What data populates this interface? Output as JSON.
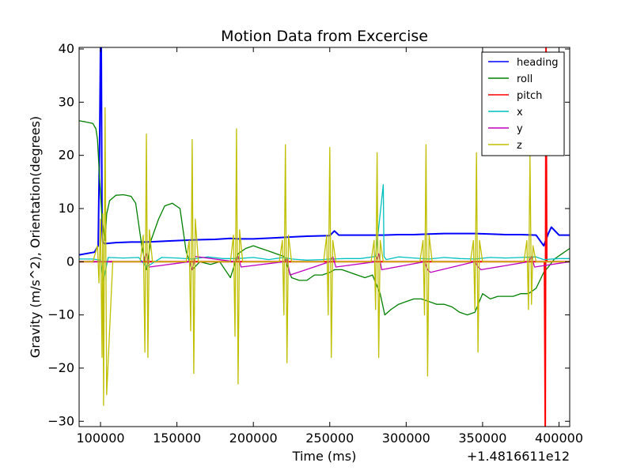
{
  "chart_data": {
    "type": "line",
    "title": "Motion Data from Excercise",
    "xlabel": "Time (ms)",
    "ylabel": "Gravity (m/s^2), Orientation(degrees)",
    "x_offset_label": "+1.4816611e12",
    "xlim": [
      86000,
      407000
    ],
    "ylim": [
      -31,
      40.3
    ],
    "xticks": [
      100000,
      150000,
      200000,
      250000,
      300000,
      350000,
      400000
    ],
    "yticks": [
      -30,
      -20,
      -10,
      0,
      10,
      20,
      30,
      40
    ],
    "grid": false,
    "legend_position": "top-right",
    "series": [
      {
        "name": "heading",
        "color": "#0000ff",
        "x": [
          86000,
          96000,
          98500,
          99500,
          100000,
          100500,
          101000,
          101500,
          103000,
          110000,
          120000,
          130000,
          145000,
          160000,
          175000,
          185000,
          190000,
          200000,
          215000,
          222000,
          235000,
          250000,
          253000,
          256000,
          270000,
          285000,
          295000,
          305000,
          315000,
          325000,
          335000,
          345000,
          355000,
          365000,
          375000,
          385000,
          390000,
          393000,
          395000,
          400000,
          407000
        ],
        "y": [
          1.3,
          1.8,
          3.0,
          25.0,
          40.3,
          40.3,
          6.0,
          3.6,
          3.4,
          3.6,
          3.7,
          3.7,
          3.9,
          4.1,
          4.2,
          4.4,
          4.3,
          4.3,
          4.5,
          4.6,
          4.8,
          4.9,
          5.8,
          5.0,
          5.0,
          5.0,
          5.1,
          5.1,
          5.2,
          5.3,
          5.3,
          5.3,
          5.2,
          5.1,
          5.1,
          5.0,
          3.0,
          5.3,
          6.5,
          5.0,
          5.0
        ]
      },
      {
        "name": "roll",
        "color": "#008000",
        "x": [
          86000,
          90000,
          95000,
          97000,
          98000,
          99500,
          101000,
          103000,
          104000,
          106000,
          110000,
          115000,
          120000,
          123000,
          127000,
          130000,
          133000,
          138000,
          142000,
          147000,
          152000,
          156000,
          160000,
          165000,
          172000,
          178000,
          185000,
          190000,
          195000,
          200000,
          205000,
          210000,
          215000,
          220000,
          225000,
          230000,
          235000,
          240000,
          245000,
          250000,
          253000,
          258000,
          263000,
          268000,
          273000,
          278000,
          283000,
          286000,
          290000,
          295000,
          300000,
          305000,
          310000,
          315000,
          320000,
          325000,
          330000,
          335000,
          340000,
          345000,
          350000,
          355000,
          360000,
          365000,
          370000,
          375000,
          380000,
          385000,
          390000,
          393000,
          397000,
          402000,
          407000
        ],
        "y": [
          26.5,
          26.3,
          26.0,
          25.0,
          23.0,
          15.0,
          8.0,
          4.0,
          9.0,
          11.5,
          12.5,
          12.6,
          12.3,
          11.0,
          3.0,
          -1.5,
          4.0,
          8.0,
          10.5,
          11.0,
          10.0,
          2.0,
          -1.5,
          0.0,
          -0.5,
          0.0,
          -3.0,
          1.5,
          2.5,
          3.0,
          2.5,
          2.0,
          1.5,
          1.0,
          -3.0,
          -3.5,
          -3.5,
          -2.5,
          -2.5,
          -2.0,
          -1.5,
          -1.5,
          -2.0,
          -2.5,
          -3.0,
          -2.5,
          -6.0,
          -10.0,
          -9.0,
          -8.0,
          -7.5,
          -7.0,
          -7.0,
          -7.5,
          -8.0,
          -8.0,
          -8.5,
          -9.5,
          -10.0,
          -9.5,
          -6.0,
          -7.0,
          -6.5,
          -6.5,
          -6.5,
          -6.0,
          -6.0,
          -5.0,
          -2.0,
          -1.0,
          0.5,
          1.5,
          2.5
        ]
      },
      {
        "name": "pitch",
        "color": "#ff0000",
        "x": [
          86000,
          100000,
          150000,
          200000,
          250000,
          300000,
          350000,
          389000,
          390500,
          391000,
          391500,
          392000,
          393500,
          400000,
          407000
        ],
        "y": [
          0.0,
          0.0,
          0.0,
          0.0,
          0.0,
          0.0,
          0.0,
          0.0,
          0.0,
          -31,
          40.3,
          0.0,
          0.0,
          0.0,
          0.0
        ]
      },
      {
        "name": "x",
        "color": "#00bfbf",
        "x": [
          86000,
          95000,
          100000,
          102000,
          105000,
          115000,
          125000,
          130000,
          140000,
          150000,
          160000,
          170000,
          180000,
          190000,
          200000,
          210000,
          220000,
          225000,
          235000,
          245000,
          250000,
          260000,
          270000,
          280000,
          285000,
          285500,
          287000,
          295000,
          305000,
          315000,
          325000,
          335000,
          345000,
          355000,
          365000,
          375000,
          385000,
          390000,
          400000,
          407000
        ],
        "y": [
          0.5,
          0.5,
          0.3,
          -3.5,
          0.8,
          0.7,
          0.8,
          -1.0,
          0.8,
          0.7,
          0.5,
          0.9,
          0.6,
          0.6,
          0.8,
          0.4,
          0.8,
          0.5,
          0.3,
          0.4,
          0.5,
          0.6,
          0.6,
          1.0,
          14.5,
          1.0,
          0.4,
          0.9,
          0.7,
          0.5,
          0.8,
          0.6,
          0.5,
          0.8,
          0.7,
          0.8,
          0.9,
          0.4,
          0.6,
          0.6
        ]
      },
      {
        "name": "y",
        "color": "#bf00bf",
        "x": [
          86000,
          100000,
          128000,
          130000,
          132000,
          158000,
          160000,
          162000,
          188000,
          190000,
          192000,
          220000,
          222000,
          224000,
          250000,
          252000,
          254000,
          280000,
          282000,
          284000,
          312000,
          314000,
          316000,
          345000,
          347000,
          349000,
          380000,
          382000,
          384000,
          407000
        ],
        "y": [
          0.0,
          0.0,
          0.0,
          1.5,
          -1.0,
          0.0,
          -1.5,
          1.0,
          0.0,
          1.0,
          -1.0,
          0.0,
          0.5,
          -2.5,
          0.0,
          1.0,
          -1.0,
          0.0,
          1.5,
          -1.5,
          0.0,
          -1.5,
          -2.0,
          0.0,
          -1.0,
          -1.5,
          0.0,
          1.0,
          -1.0,
          0.0
        ]
      },
      {
        "name": "z",
        "color": "#bfbf00",
        "x": [
          86000,
          95000,
          98000,
          99000,
          100000,
          101000,
          101500,
          102000,
          103000,
          104000,
          108000,
          126000,
          128000,
          129000,
          130000,
          131000,
          132000,
          134000,
          156000,
          158000,
          159000,
          160000,
          161000,
          162000,
          164000,
          185000,
          187000,
          188000,
          189000,
          190000,
          191000,
          193000,
          217000,
          219000,
          220000,
          221000,
          222000,
          223000,
          225000,
          246000,
          248000,
          249000,
          250000,
          251000,
          252000,
          254000,
          277000,
          279000,
          280000,
          281000,
          282000,
          283000,
          285000,
          309000,
          311000,
          312000,
          313000,
          314000,
          315000,
          317000,
          342000,
          344000,
          345000,
          346000,
          347000,
          348000,
          350000,
          377000,
          379000,
          380000,
          381000,
          382000,
          383000,
          385000,
          407000
        ],
        "y": [
          0.0,
          0.0,
          3.0,
          -4.0,
          8.0,
          -18.0,
          9.0,
          -27.0,
          29.0,
          -25.0,
          0.0,
          0.0,
          5.0,
          -17.0,
          24.0,
          -18.0,
          6.0,
          0.0,
          0.0,
          4.0,
          -13.0,
          23.0,
          -21.0,
          8.0,
          0.0,
          0.0,
          5.0,
          -14.0,
          25.0,
          -23.0,
          6.0,
          0.0,
          0.0,
          4.0,
          -10.0,
          22.0,
          -19.0,
          5.0,
          0.0,
          0.0,
          5.0,
          -10.0,
          21.5,
          -18.0,
          4.0,
          0.0,
          0.0,
          4.0,
          -9.0,
          20.5,
          -18.0,
          4.0,
          0.0,
          0.0,
          4.0,
          -10.0,
          22.0,
          -21.5,
          5.0,
          0.0,
          0.0,
          4.0,
          -9.0,
          20.5,
          -17.0,
          4.0,
          0.0,
          0.0,
          4.0,
          -9.0,
          20.0,
          -8.0,
          3.0,
          0.0,
          0.0
        ]
      }
    ]
  }
}
